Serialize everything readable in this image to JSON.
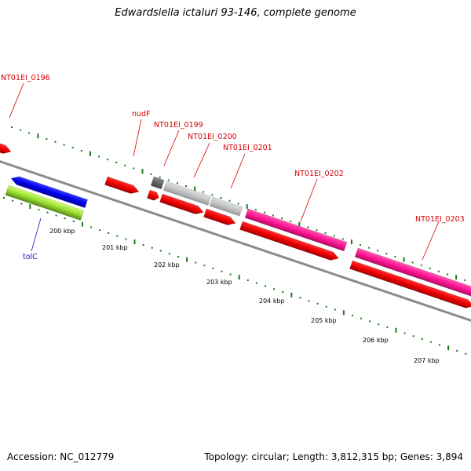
{
  "title": "Edwardsiella ictaluri 93-146, complete genome",
  "footer": {
    "accession": "Accession: NC_012779",
    "summary": "Topology: circular; Length: 3,812,315 bp; Genes: 3,894"
  },
  "colors": {
    "red_gene": "#ee0000",
    "magenta_gene": "#ff1493",
    "blue_gene": "#0000ee",
    "green_gene": "#88cc22",
    "grey_gene": "#bbbbbb",
    "dark_grey_gene": "#666666",
    "backbone": "#888888",
    "ticks": "#006600",
    "red_label": "#d40000",
    "blue_label": "#1515cc"
  },
  "gene_labels": [
    {
      "id": "NT01EI_0196",
      "text": "NT01EI_0196"
    },
    {
      "id": "nudF",
      "text": "nudF"
    },
    {
      "id": "NT01EI_0199",
      "text": "NT01EI_0199"
    },
    {
      "id": "NT01EI_0200",
      "text": "NT01EI_0200"
    },
    {
      "id": "NT01EI_0201",
      "text": "NT01EI_0201"
    },
    {
      "id": "NT01EI_0202",
      "text": "NT01EI_0202"
    },
    {
      "id": "NT01EI_0203",
      "text": "NT01EI_0203"
    },
    {
      "id": "tolC",
      "text": "tolC"
    }
  ],
  "kbp_labels": [
    "200 kbp",
    "201 kbp",
    "202 kbp",
    "203 kbp",
    "204 kbp",
    "205 kbp",
    "206 kbp",
    "207 kbp"
  ]
}
